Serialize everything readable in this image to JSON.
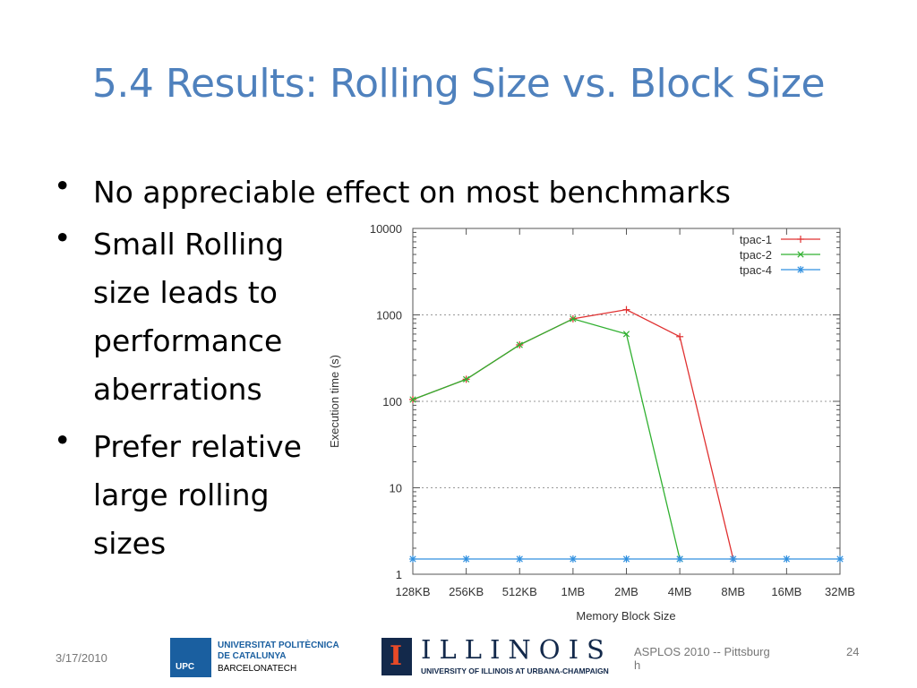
{
  "slide": {
    "title": "5.4 Results: Rolling Size vs. Block Size",
    "bullets": [
      "No appreciable effect on most benchmarks",
      "Small Rolling\nsize leads to\nperformance\naberrations",
      "Prefer relative\nlarge rolling\nsizes"
    ]
  },
  "footer": {
    "date": "3/17/2010",
    "event": "ASPLOS 2010 -- Pittsburg\nh",
    "page": "24",
    "logo_upc_lines": [
      "UNIVERSITAT POLITÈCNICA",
      "DE CATALUNYA"
    ],
    "logo_upc_mark": "UPC",
    "logo_upc_sub": "BARCELONATECH",
    "logo_illinois": "ILLINOIS",
    "logo_illinois_sub": "UNIVERSITY OF ILLINOIS AT URBANA-CHAMPAIGN",
    "logo_illinois_mark": "I"
  },
  "chart_data": {
    "type": "line",
    "xlabel": "Memory Block Size",
    "ylabel": "Execution time (s)",
    "categories": [
      "128KB",
      "256KB",
      "512KB",
      "1MB",
      "2MB",
      "4MB",
      "8MB",
      "16MB",
      "32MB"
    ],
    "y_scale": "log",
    "ylim": [
      1,
      10000
    ],
    "y_ticks": [
      "1",
      "10",
      "100",
      "1000",
      "10000"
    ],
    "grid": "horizontal dotted",
    "legend": "top-right",
    "series": [
      {
        "name": "tpac-1",
        "color": "#e03030",
        "marker": "+",
        "values": [
          105,
          180,
          450,
          900,
          1150,
          560,
          1.5,
          null,
          null
        ]
      },
      {
        "name": "tpac-2",
        "color": "#30b030",
        "marker": "x",
        "values": [
          105,
          180,
          450,
          900,
          600,
          1.5,
          null,
          null,
          null
        ]
      },
      {
        "name": "tpac-4",
        "color": "#3090e0",
        "marker": "*",
        "values": [
          1.5,
          1.5,
          1.5,
          1.5,
          1.5,
          1.5,
          1.5,
          1.5,
          1.5
        ]
      }
    ]
  }
}
